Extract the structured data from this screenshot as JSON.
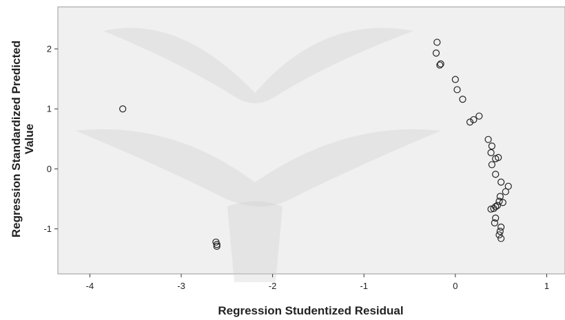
{
  "chart_data": {
    "type": "scatter",
    "xlabel": "Regression Studentized Residual",
    "ylabel": [
      "Regression Standardized Predicted",
      "Value"
    ],
    "xlim": [
      -4.35,
      1.2
    ],
    "ylim": [
      -1.75,
      2.7
    ],
    "xticks": [
      -4,
      -3,
      -2,
      -1,
      0,
      1
    ],
    "yticks": [
      -1,
      0,
      1,
      2
    ],
    "xtick_labels": [
      "-4",
      "-3",
      "-2",
      "-1",
      "0",
      "1"
    ],
    "ytick_labels": [
      "-1",
      "0",
      "1",
      "2"
    ],
    "grid": false,
    "x": [
      -3.64,
      -2.62,
      -2.61,
      -2.61,
      -0.2,
      -0.21,
      -0.16,
      -0.17,
      0.0,
      0.02,
      0.08,
      0.26,
      0.2,
      0.16,
      0.36,
      0.4,
      0.39,
      0.44,
      0.47,
      0.4,
      0.44,
      0.5,
      0.58,
      0.55,
      0.49,
      0.52,
      0.48,
      0.46,
      0.44,
      0.42,
      0.39,
      0.44,
      0.43,
      0.5,
      0.49,
      0.48,
      0.5
    ],
    "y": [
      1.0,
      -1.22,
      -1.26,
      -1.29,
      2.11,
      1.93,
      1.75,
      1.73,
      1.49,
      1.32,
      1.16,
      0.88,
      0.82,
      0.78,
      0.49,
      0.38,
      0.27,
      0.17,
      0.19,
      0.07,
      -0.09,
      -0.22,
      -0.29,
      -0.38,
      -0.46,
      -0.56,
      -0.54,
      -0.61,
      -0.63,
      -0.66,
      -0.67,
      -0.82,
      -0.9,
      -0.97,
      -1.04,
      -1.1,
      -1.16
    ]
  },
  "colors": {
    "marker": "#222222",
    "plot_background": "#f0f0f0",
    "page_background": "#ffffff",
    "axis": "#333333"
  }
}
